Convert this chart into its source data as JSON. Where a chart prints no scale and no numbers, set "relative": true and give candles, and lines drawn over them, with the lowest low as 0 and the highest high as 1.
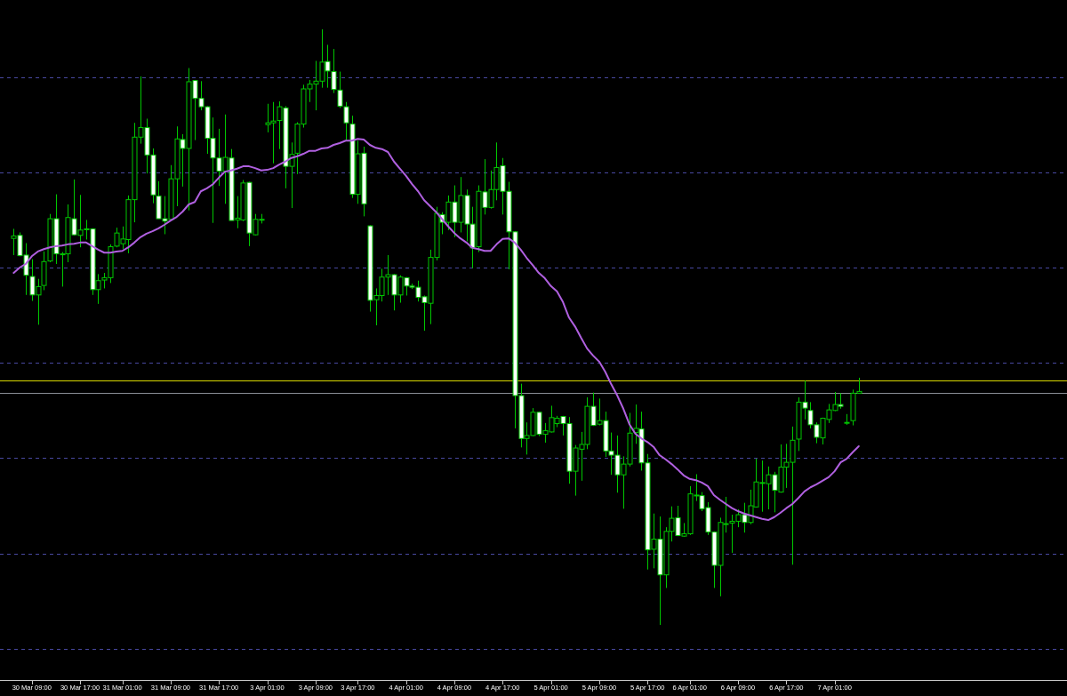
{
  "chart_data": {
    "type": "candlestick",
    "relative": true,
    "color": "#00c800",
    "categories": [
      null,
      null,
      null,
      "30 Mar 09:00",
      null,
      null,
      null,
      null,
      null,
      null,
      null,
      "30 Mar 17:00",
      null,
      null,
      null,
      null,
      null,
      null,
      "31 Mar 01:00",
      null,
      null,
      null,
      null,
      null,
      null,
      null,
      "31 Mar 09:00",
      null,
      null,
      null,
      null,
      null,
      null,
      null,
      "31 Mar 17:00",
      null,
      null,
      null,
      null,
      null,
      null,
      null,
      "3 Apr 01:00",
      null,
      null,
      null,
      null,
      null,
      null,
      null,
      "3 Apr 09:00",
      null,
      null,
      null,
      null,
      null,
      null,
      "3 Apr 17:00",
      null,
      null,
      null,
      null,
      null,
      null,
      null,
      "4 Apr 01:00",
      null,
      null,
      null,
      null,
      null,
      null,
      null,
      "4 Apr 09:00",
      null,
      null,
      null,
      null,
      null,
      null,
      null,
      "4 Apr 17:00",
      null,
      null,
      null,
      null,
      null,
      null,
      null,
      "5 Apr 01:00",
      null,
      null,
      null,
      null,
      null,
      null,
      null,
      "5 Apr 09:00",
      null,
      null,
      null,
      null,
      null,
      null,
      null,
      "5 Apr 17:00",
      null,
      null,
      null,
      null,
      null,
      null,
      "6 Apr 01:00",
      null,
      null,
      null,
      null,
      null,
      null,
      null,
      "6 Apr 09:00",
      null,
      null,
      null,
      null,
      null,
      null,
      null,
      "6 Apr 17:00",
      null,
      null,
      null,
      null,
      null,
      null,
      null,
      "7 Apr 01:00",
      null,
      null,
      null,
      null
    ],
    "ohlc": [
      [
        0.649,
        0.665,
        0.621,
        0.653
      ],
      [
        0.654,
        0.659,
        0.619,
        0.62
      ],
      [
        0.621,
        0.641,
        0.554,
        0.587
      ],
      [
        0.585,
        0.614,
        0.544,
        0.554
      ],
      [
        0.554,
        0.581,
        0.504,
        0.568
      ],
      [
        0.57,
        0.627,
        0.562,
        0.61
      ],
      [
        0.611,
        0.69,
        0.609,
        0.682
      ],
      [
        0.682,
        0.723,
        0.606,
        0.623
      ],
      [
        0.623,
        0.626,
        0.568,
        0.623
      ],
      [
        0.623,
        0.706,
        0.609,
        0.684
      ],
      [
        0.682,
        0.748,
        0.654,
        0.655
      ],
      [
        0.654,
        0.722,
        0.634,
        0.663
      ],
      [
        0.664,
        0.68,
        0.647,
        0.665
      ],
      [
        0.665,
        0.666,
        0.554,
        0.563
      ],
      [
        0.563,
        0.589,
        0.539,
        0.578
      ],
      [
        0.579,
        0.591,
        0.565,
        0.583
      ],
      [
        0.583,
        0.639,
        0.574,
        0.635
      ],
      [
        0.636,
        0.667,
        0.634,
        0.658
      ],
      [
        0.64,
        0.669,
        0.631,
        0.648
      ],
      [
        0.647,
        0.721,
        0.624,
        0.714
      ],
      [
        0.714,
        0.843,
        0.676,
        0.819
      ],
      [
        0.819,
        0.921,
        0.808,
        0.835
      ],
      [
        0.835,
        0.85,
        0.758,
        0.789
      ],
      [
        0.789,
        0.8,
        0.708,
        0.722
      ],
      [
        0.72,
        0.745,
        0.682,
        0.682
      ],
      [
        0.682,
        0.72,
        0.656,
        0.678
      ],
      [
        0.681,
        0.772,
        0.68,
        0.749
      ],
      [
        0.749,
        0.837,
        0.703,
        0.816
      ],
      [
        0.815,
        0.824,
        0.736,
        0.8
      ],
      [
        0.8,
        0.935,
        0.696,
        0.912
      ],
      [
        0.914,
        0.915,
        0.814,
        0.884
      ],
      [
        0.884,
        0.913,
        0.864,
        0.87
      ],
      [
        0.87,
        0.871,
        0.791,
        0.817
      ],
      [
        0.817,
        0.852,
        0.675,
        0.784
      ],
      [
        0.784,
        0.833,
        0.737,
        0.762
      ],
      [
        0.762,
        0.857,
        0.707,
        0.785
      ],
      [
        0.784,
        0.799,
        0.679,
        0.679
      ],
      [
        0.68,
        0.72,
        0.666,
        0.683
      ],
      [
        0.68,
        0.747,
        0.678,
        0.742
      ],
      [
        0.743,
        0.744,
        0.636,
        0.658
      ],
      [
        0.655,
        0.69,
        0.654,
        0.681
      ],
      [
        0.681,
        0.69,
        0.674,
        0.681
      ],
      [
        0.84,
        0.875,
        0.827,
        0.843
      ],
      [
        0.843,
        0.878,
        0.775,
        0.846
      ],
      [
        0.847,
        0.879,
        0.799,
        0.87
      ],
      [
        0.868,
        0.871,
        0.733,
        0.77
      ],
      [
        0.77,
        0.81,
        0.7,
        0.79
      ],
      [
        0.792,
        0.844,
        0.757,
        0.841
      ],
      [
        0.841,
        0.907,
        0.835,
        0.9
      ],
      [
        0.9,
        0.915,
        0.878,
        0.908
      ],
      [
        0.908,
        0.947,
        0.864,
        0.913
      ],
      [
        0.913,
        1.0,
        0.902,
        0.945
      ],
      [
        0.946,
        0.974,
        0.902,
        0.93
      ],
      [
        0.929,
        0.967,
        0.893,
        0.899
      ],
      [
        0.898,
        0.929,
        0.868,
        0.871
      ],
      [
        0.87,
        0.878,
        0.814,
        0.843
      ],
      [
        0.841,
        0.855,
        0.717,
        0.723
      ],
      [
        0.723,
        0.813,
        0.707,
        0.791
      ],
      [
        0.792,
        0.803,
        0.686,
        0.707
      ],
      [
        0.67,
        0.671,
        0.526,
        0.545
      ],
      [
        0.546,
        0.565,
        0.503,
        0.553
      ],
      [
        0.553,
        0.598,
        0.543,
        0.584
      ],
      [
        0.584,
        0.621,
        0.554,
        0.588
      ],
      [
        0.588,
        0.589,
        0.528,
        0.554
      ],
      [
        0.554,
        0.587,
        0.541,
        0.584
      ],
      [
        0.583,
        0.584,
        0.553,
        0.569
      ],
      [
        0.569,
        0.573,
        0.564,
        0.567
      ],
      [
        0.567,
        0.578,
        0.543,
        0.55
      ],
      [
        0.551,
        0.553,
        0.494,
        0.541
      ],
      [
        0.54,
        0.63,
        0.505,
        0.617
      ],
      [
        0.617,
        0.702,
        0.612,
        0.691
      ],
      [
        0.689,
        0.693,
        0.656,
        0.676
      ],
      [
        0.676,
        0.721,
        0.663,
        0.71
      ],
      [
        0.71,
        0.738,
        0.651,
        0.676
      ],
      [
        0.676,
        0.752,
        0.659,
        0.721
      ],
      [
        0.721,
        0.731,
        0.644,
        0.673
      ],
      [
        0.673,
        0.702,
        0.599,
        0.633
      ],
      [
        0.635,
        0.738,
        0.626,
        0.728
      ],
      [
        0.727,
        0.782,
        0.689,
        0.701
      ],
      [
        0.701,
        0.763,
        0.699,
        0.731
      ],
      [
        0.731,
        0.81,
        0.713,
        0.768
      ],
      [
        0.771,
        0.784,
        0.689,
        0.728
      ],
      [
        0.728,
        0.744,
        0.597,
        0.66
      ],
      [
        0.66,
        0.661,
        0.33,
        0.385
      ],
      [
        0.385,
        0.405,
        0.298,
        0.313
      ],
      [
        0.313,
        0.34,
        0.286,
        0.318
      ],
      [
        0.318,
        0.364,
        0.317,
        0.357
      ],
      [
        0.357,
        0.358,
        0.317,
        0.32
      ],
      [
        0.32,
        0.339,
        0.306,
        0.326
      ],
      [
        0.324,
        0.368,
        0.323,
        0.348
      ],
      [
        0.338,
        0.351,
        0.332,
        0.347
      ],
      [
        0.35,
        0.351,
        0.318,
        0.338
      ],
      [
        0.338,
        0.349,
        0.237,
        0.258
      ],
      [
        0.258,
        0.302,
        0.217,
        0.297
      ],
      [
        0.295,
        0.324,
        0.242,
        0.303
      ],
      [
        0.303,
        0.382,
        0.295,
        0.367
      ],
      [
        0.367,
        0.39,
        0.334,
        0.335
      ],
      [
        0.337,
        0.38,
        0.335,
        0.343
      ],
      [
        0.343,
        0.358,
        0.282,
        0.292
      ],
      [
        0.292,
        0.323,
        0.252,
        0.285
      ],
      [
        0.285,
        0.318,
        0.222,
        0.252
      ],
      [
        0.252,
        0.283,
        0.195,
        0.27
      ],
      [
        0.27,
        0.356,
        0.266,
        0.322
      ],
      [
        0.323,
        0.37,
        0.304,
        0.33
      ],
      [
        0.329,
        0.358,
        0.259,
        0.272
      ],
      [
        0.272,
        0.287,
        0.093,
        0.126
      ],
      [
        0.127,
        0.187,
        0.095,
        0.144
      ],
      [
        0.144,
        0.182,
        0.0,
        0.084
      ],
      [
        0.084,
        0.164,
        0.062,
        0.157
      ],
      [
        0.157,
        0.199,
        0.14,
        0.179
      ],
      [
        0.18,
        0.2,
        0.149,
        0.15
      ],
      [
        0.149,
        0.171,
        0.148,
        0.153
      ],
      [
        0.153,
        0.233,
        0.151,
        0.22
      ],
      [
        0.218,
        0.253,
        0.208,
        0.218
      ],
      [
        0.217,
        0.223,
        0.191,
        0.195
      ],
      [
        0.197,
        0.206,
        0.151,
        0.156
      ],
      [
        0.156,
        0.157,
        0.062,
        0.1
      ],
      [
        0.1,
        0.18,
        0.048,
        0.172
      ],
      [
        0.17,
        0.215,
        0.155,
        0.17
      ],
      [
        0.171,
        0.185,
        0.121,
        0.174
      ],
      [
        0.174,
        0.194,
        0.164,
        0.185
      ],
      [
        0.185,
        0.205,
        0.155,
        0.172
      ],
      [
        0.172,
        0.227,
        0.169,
        0.2
      ],
      [
        0.198,
        0.279,
        0.197,
        0.24
      ],
      [
        0.239,
        0.276,
        0.19,
        0.239
      ],
      [
        0.237,
        0.266,
        0.194,
        0.252
      ],
      [
        0.252,
        0.257,
        0.189,
        0.226
      ],
      [
        0.223,
        0.303,
        0.222,
        0.265
      ],
      [
        0.265,
        0.304,
        0.23,
        0.273
      ],
      [
        0.273,
        0.333,
        0.101,
        0.31
      ],
      [
        0.312,
        0.382,
        0.292,
        0.374
      ],
      [
        0.374,
        0.41,
        0.345,
        0.364
      ],
      [
        0.36,
        0.374,
        0.33,
        0.336
      ],
      [
        0.336,
        0.34,
        0.305,
        0.315
      ],
      [
        0.314,
        0.348,
        0.303,
        0.347
      ],
      [
        0.345,
        0.371,
        0.339,
        0.361
      ],
      [
        0.36,
        0.391,
        0.359,
        0.37
      ],
      [
        0.37,
        0.389,
        0.363,
        0.367
      ],
      [
        0.34,
        0.354,
        0.336,
        0.34
      ],
      [
        0.343,
        0.395,
        0.335,
        0.389
      ],
      [
        0.389,
        0.415,
        0.389,
        0.392
      ]
    ],
    "series": [
      {
        "type": "line",
        "color": "#b060e0",
        "values": [
          0.591,
          0.6,
          0.606,
          0.619,
          0.627,
          0.631,
          0.634,
          0.636,
          0.637,
          0.639,
          0.64,
          0.642,
          0.642,
          0.636,
          0.63,
          0.625,
          0.625,
          0.627,
          0.628,
          0.634,
          0.642,
          0.651,
          0.657,
          0.661,
          0.666,
          0.672,
          0.679,
          0.685,
          0.694,
          0.706,
          0.71,
          0.728,
          0.733,
          0.74,
          0.751,
          0.761,
          0.763,
          0.766,
          0.77,
          0.77,
          0.767,
          0.763,
          0.764,
          0.767,
          0.773,
          0.778,
          0.784,
          0.787,
          0.791,
          0.796,
          0.796,
          0.8,
          0.801,
          0.806,
          0.809,
          0.813,
          0.813,
          0.816,
          0.815,
          0.806,
          0.801,
          0.799,
          0.794,
          0.778,
          0.766,
          0.754,
          0.74,
          0.728,
          0.713,
          0.703,
          0.693,
          0.681,
          0.669,
          0.658,
          0.649,
          0.642,
          0.633,
          0.631,
          0.628,
          0.628,
          0.639,
          0.648,
          0.649,
          0.642,
          0.63,
          0.616,
          0.604,
          0.591,
          0.582,
          0.569,
          0.56,
          0.542,
          0.516,
          0.501,
          0.482,
          0.464,
          0.452,
          0.442,
          0.425,
          0.404,
          0.385,
          0.363,
          0.337,
          0.321,
          0.313,
          0.307,
          0.299,
          0.285,
          0.278,
          0.27,
          0.261,
          0.251,
          0.245,
          0.243,
          0.239,
          0.233,
          0.218,
          0.21,
          0.203,
          0.196,
          0.191,
          0.187,
          0.184,
          0.181,
          0.178,
          0.176,
          0.181,
          0.188,
          0.196,
          0.203,
          0.213,
          0.224,
          0.231,
          0.236,
          0.242,
          0.248,
          0.258,
          0.273,
          0.279,
          0.29,
          0.3
        ]
      }
    ],
    "ref_lines": [
      {
        "axis": "y",
        "value": 0.92,
        "color": "#4848a0",
        "line_style": "dashed"
      },
      {
        "axis": "y",
        "value": 0.76,
        "color": "#4848a0",
        "line_style": "dashed"
      },
      {
        "axis": "y",
        "value": 0.6,
        "color": "#4848a0",
        "line_style": "dashed"
      },
      {
        "axis": "y",
        "value": 0.44,
        "color": "#4848a0",
        "line_style": "dashed"
      },
      {
        "axis": "y",
        "value": 0.28,
        "color": "#4848a0",
        "line_style": "dashed"
      },
      {
        "axis": "y",
        "value": 0.12,
        "color": "#4848a0",
        "line_style": "dashed"
      },
      {
        "axis": "y",
        "value": -0.04,
        "color": "#4848a0",
        "line_style": "dashed"
      },
      {
        "axis": "y",
        "value": 0.41,
        "color": "#d8d800",
        "line_style": "solid"
      },
      {
        "axis": "y",
        "value": 0.39,
        "color": "#8a8e96",
        "line_style": "solid"
      }
    ]
  }
}
